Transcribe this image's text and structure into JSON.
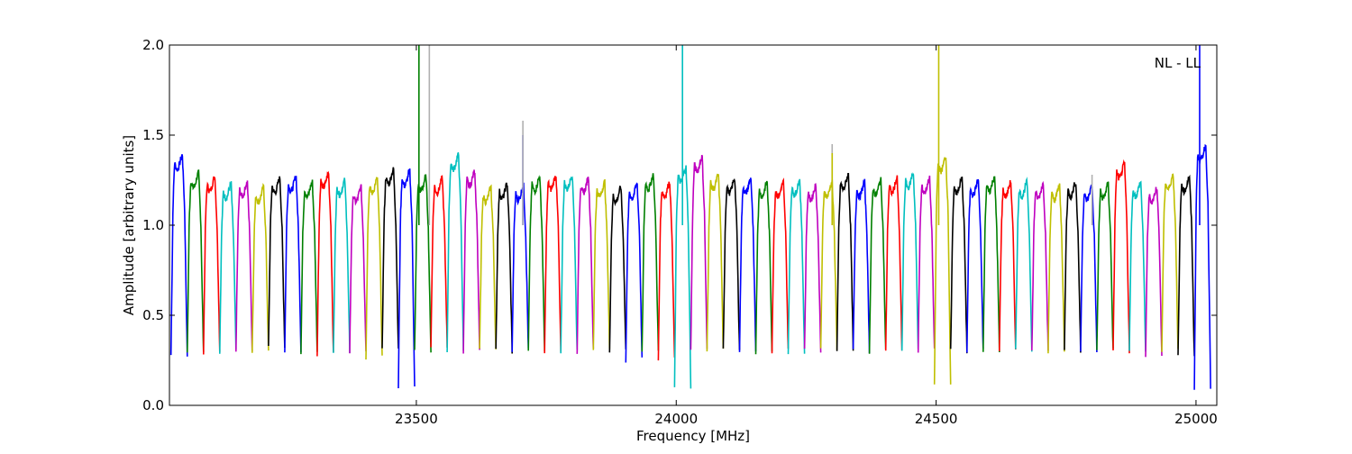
{
  "chart_data": {
    "type": "line",
    "title": "",
    "xlabel": "Frequency [MHz]",
    "ylabel": "Amplitude [arbitrary units]",
    "annotation": "NL - LL",
    "xlim": [
      23025,
      25040
    ],
    "ylim": [
      0.0,
      2.0
    ],
    "x_ticks": [
      23500,
      24000,
      24500,
      25000
    ],
    "x_tick_labels": [
      "23500",
      "24000",
      "24500",
      "25000"
    ],
    "y_ticks": [
      0.0,
      0.5,
      1.0,
      1.5,
      2.0
    ],
    "y_tick_labels": [
      "0.0",
      "0.5",
      "1.0",
      "1.5",
      "2.0"
    ],
    "grid": false,
    "legend": "none",
    "colors": [
      "#0000ff",
      "#008000",
      "#ff0000",
      "#00bfbf",
      "#bf00bf",
      "#bfbf00",
      "#000000"
    ],
    "ghost_color": "#b0b0b0",
    "channel_start": 23028,
    "channel_width": 31.25,
    "channel_count": 64,
    "channel_plateau": [
      1.35,
      1.25,
      1.23,
      1.19,
      1.2,
      1.17,
      1.22,
      1.23,
      1.2,
      1.25,
      1.21,
      1.17,
      1.22,
      1.27,
      1.26,
      1.23,
      1.22,
      1.35,
      1.26,
      1.17,
      1.19,
      1.18,
      1.23,
      1.24,
      1.24,
      1.22,
      1.2,
      1.17,
      1.19,
      1.24,
      1.2,
      1.28,
      1.34,
      1.24,
      1.22,
      1.22,
      1.2,
      1.2,
      1.21,
      1.18,
      1.2,
      1.24,
      1.2,
      1.21,
      1.22,
      1.25,
      1.22,
      1.34,
      1.22,
      1.21,
      1.23,
      1.2,
      1.2,
      1.19,
      1.18,
      1.2,
      1.18,
      1.19,
      1.3,
      1.2,
      1.17,
      1.24,
      1.23,
      1.4
    ],
    "channel_dip": [
      0.28,
      0.28,
      0.3,
      0.3,
      0.3,
      0.3,
      0.32,
      0.3,
      0.3,
      0.28,
      0.3,
      0.3,
      0.26,
      0.3,
      0.1,
      0.3,
      0.33,
      0.3,
      0.3,
      0.3,
      0.3,
      0.3,
      0.3,
      0.28,
      0.3,
      0.3,
      0.3,
      0.3,
      0.25,
      0.3,
      0.25,
      0.1,
      0.3,
      0.3,
      0.3,
      0.3,
      0.3,
      0.3,
      0.3,
      0.3,
      0.3,
      0.3,
      0.3,
      0.3,
      0.3,
      0.3,
      0.3,
      0.1,
      0.3,
      0.3,
      0.3,
      0.3,
      0.3,
      0.3,
      0.3,
      0.3,
      0.3,
      0.3,
      0.3,
      0.3,
      0.26,
      0.3,
      0.27,
      0.1
    ],
    "spikes": [
      {
        "x": 23505,
        "y": 2.0,
        "color": "#008000"
      },
      {
        "x": 23525,
        "y": 2.0,
        "color": "#b0b0b0"
      },
      {
        "x": 23705,
        "y": 1.5,
        "color": "#0000ff"
      },
      {
        "x": 23705,
        "y": 1.58,
        "color": "#b0b0b0"
      },
      {
        "x": 24012,
        "y": 2.0,
        "color": "#00bfbf"
      },
      {
        "x": 24300,
        "y": 1.45,
        "color": "#b0b0b0"
      },
      {
        "x": 24300,
        "y": 1.4,
        "color": "#bfbf00"
      },
      {
        "x": 24505,
        "y": 2.0,
        "color": "#bfbf00"
      },
      {
        "x": 24800,
        "y": 1.28,
        "color": "#b0b0b0"
      },
      {
        "x": 25007,
        "y": 2.0,
        "color": "#0000ff"
      }
    ]
  }
}
